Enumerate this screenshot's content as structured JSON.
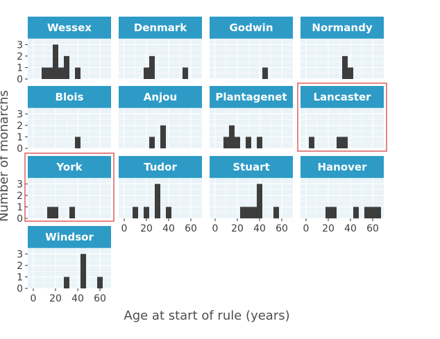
{
  "chart_data": {
    "type": "bar",
    "subtype": "faceted-histogram",
    "xlabel": "Age at start of rule (years)",
    "ylabel": "Number of monarchs",
    "x_ticks": [
      0,
      20,
      40,
      60
    ],
    "y_ticks": [
      0,
      1,
      2,
      3
    ],
    "xlim": [
      -5,
      70
    ],
    "ylim": [
      0,
      3.5
    ],
    "bin_width": 5,
    "grid": true,
    "colors": {
      "strip": "#2d9bc6",
      "panel": "#eaf3f8",
      "grid": "#ffffff",
      "bar": "#3d3d3d",
      "highlight": "#d9534f"
    },
    "facets": [
      {
        "name": "Wessex",
        "highlight": false,
        "bins": [
          {
            "x": 10,
            "count": 1
          },
          {
            "x": 15,
            "count": 1
          },
          {
            "x": 20,
            "count": 3
          },
          {
            "x": 25,
            "count": 1
          },
          {
            "x": 30,
            "count": 2
          },
          {
            "x": 40,
            "count": 1
          }
        ]
      },
      {
        "name": "Denmark",
        "highlight": false,
        "bins": [
          {
            "x": 20,
            "count": 1
          },
          {
            "x": 25,
            "count": 2
          },
          {
            "x": 55,
            "count": 1
          }
        ]
      },
      {
        "name": "Godwin",
        "highlight": false,
        "bins": [
          {
            "x": 45,
            "count": 1
          }
        ]
      },
      {
        "name": "Normandy",
        "highlight": false,
        "bins": [
          {
            "x": 35,
            "count": 2
          },
          {
            "x": 40,
            "count": 1
          }
        ]
      },
      {
        "name": "Blois",
        "highlight": false,
        "bins": [
          {
            "x": 40,
            "count": 1
          }
        ]
      },
      {
        "name": "Anjou",
        "highlight": false,
        "bins": [
          {
            "x": 25,
            "count": 1
          },
          {
            "x": 35,
            "count": 2
          }
        ]
      },
      {
        "name": "Plantagenet",
        "highlight": false,
        "bins": [
          {
            "x": 10,
            "count": 1
          },
          {
            "x": 15,
            "count": 2
          },
          {
            "x": 20,
            "count": 1
          },
          {
            "x": 30,
            "count": 1
          },
          {
            "x": 40,
            "count": 1
          }
        ]
      },
      {
        "name": "Lancaster",
        "highlight": true,
        "bins": [
          {
            "x": 5,
            "count": 1
          },
          {
            "x": 30,
            "count": 1
          },
          {
            "x": 35,
            "count": 1
          }
        ]
      },
      {
        "name": "York",
        "highlight": true,
        "bins": [
          {
            "x": 15,
            "count": 1
          },
          {
            "x": 20,
            "count": 1
          },
          {
            "x": 35,
            "count": 1
          }
        ]
      },
      {
        "name": "Tudor",
        "highlight": false,
        "bins": [
          {
            "x": 10,
            "count": 1
          },
          {
            "x": 20,
            "count": 1
          },
          {
            "x": 30,
            "count": 3
          },
          {
            "x": 40,
            "count": 1
          }
        ]
      },
      {
        "name": "Stuart",
        "highlight": false,
        "bins": [
          {
            "x": 25,
            "count": 1
          },
          {
            "x": 30,
            "count": 1
          },
          {
            "x": 35,
            "count": 1
          },
          {
            "x": 40,
            "count": 3
          },
          {
            "x": 55,
            "count": 1
          }
        ]
      },
      {
        "name": "Hanover",
        "highlight": false,
        "bins": [
          {
            "x": 20,
            "count": 1
          },
          {
            "x": 25,
            "count": 1
          },
          {
            "x": 45,
            "count": 1
          },
          {
            "x": 55,
            "count": 1
          },
          {
            "x": 60,
            "count": 1
          },
          {
            "x": 65,
            "count": 1
          }
        ]
      },
      {
        "name": "Windsor",
        "highlight": false,
        "bins": [
          {
            "x": 30,
            "count": 1
          },
          {
            "x": 45,
            "count": 3
          },
          {
            "x": 60,
            "count": 1
          }
        ]
      }
    ]
  }
}
